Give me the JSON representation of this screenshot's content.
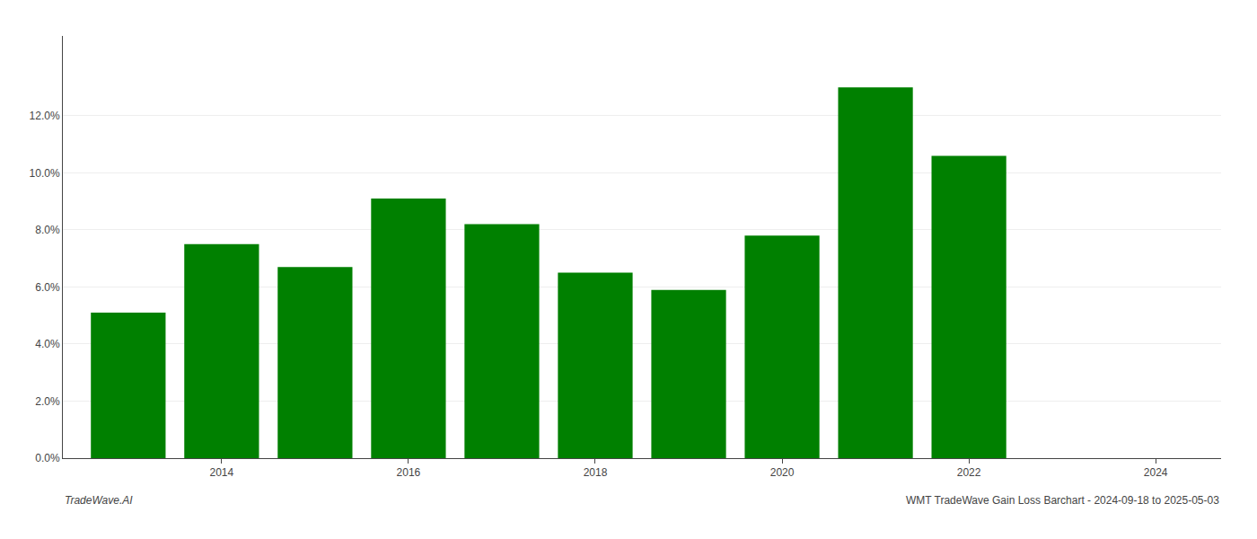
{
  "chart_data": {
    "type": "bar",
    "x": [
      2013,
      2014,
      2015,
      2016,
      2017,
      2018,
      2019,
      2020,
      2021,
      2022
    ],
    "values": [
      0.051,
      0.075,
      0.067,
      0.091,
      0.082,
      0.065,
      0.059,
      0.078,
      0.13,
      0.106
    ],
    "color": "#008000",
    "xlim": [
      2012.3,
      2024.7
    ],
    "xticks": [
      2014,
      2016,
      2018,
      2020,
      2022,
      2024
    ],
    "ylim": [
      0,
      0.148
    ],
    "yticks": [
      {
        "value": 0.0,
        "label": "0.0%"
      },
      {
        "value": 0.02,
        "label": "2.0%"
      },
      {
        "value": 0.04,
        "label": "4.0%"
      },
      {
        "value": 0.06,
        "label": "6.0%"
      },
      {
        "value": 0.08,
        "label": "8.0%"
      },
      {
        "value": 0.1,
        "label": "10.0%"
      },
      {
        "value": 0.12,
        "label": "12.0%"
      }
    ],
    "grid": true,
    "annotations": [
      "TradeWave.AI",
      "WMT TradeWave Gain Loss Barchart - 2024-09-18 to 2025-05-03"
    ]
  }
}
